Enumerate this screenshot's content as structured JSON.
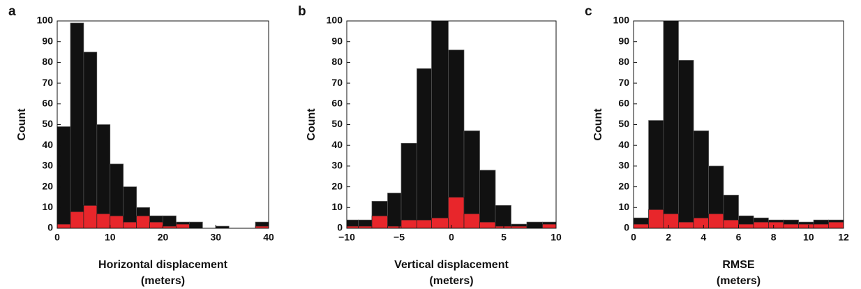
{
  "chart_data": [
    {
      "type": "histogram",
      "panel_label": "a",
      "xlabel": [
        "Horizontal displacement",
        "(meters)"
      ],
      "ylabel": "Count",
      "bins": [
        0,
        2.5,
        5,
        7.5,
        10,
        12.5,
        15,
        17.5,
        20,
        22.5,
        25,
        27.5,
        30,
        32.5,
        35,
        37.5,
        40
      ],
      "series": [
        {
          "color": "#111111",
          "values": [
            49,
            99,
            85,
            50,
            31,
            20,
            10,
            6,
            6,
            3,
            3,
            0,
            1,
            0,
            0,
            3
          ]
        },
        {
          "color": "#e8262b",
          "values": [
            2,
            8,
            11,
            7,
            6,
            3,
            6,
            3,
            1,
            2,
            0,
            0,
            0,
            0,
            0,
            1
          ]
        }
      ],
      "xlim": [
        0,
        40
      ],
      "xticks": [
        0,
        10,
        20,
        30,
        40
      ],
      "ylim": [
        0,
        100
      ],
      "yticks": [
        0,
        10,
        20,
        30,
        40,
        50,
        60,
        70,
        80,
        90,
        100
      ]
    },
    {
      "type": "histogram",
      "panel_label": "b",
      "xlabel": [
        "Vertical displacement",
        "(meters)"
      ],
      "ylabel": "Count",
      "bins": [
        -10,
        -8.9,
        -7.6,
        -6.1,
        -4.8,
        -3.3,
        -1.9,
        -0.3,
        1.2,
        2.7,
        4.2,
        5.7,
        7.2,
        8.7,
        10
      ],
      "series": [
        {
          "color": "#111111",
          "values": [
            4,
            4,
            13,
            17,
            41,
            77,
            100,
            86,
            47,
            28,
            11,
            2,
            3,
            3
          ]
        },
        {
          "color": "#e8262b",
          "values": [
            1,
            1,
            6,
            1,
            4,
            4,
            5,
            15,
            7,
            3,
            1,
            1,
            0,
            2
          ]
        }
      ],
      "xlim": [
        -10,
        10
      ],
      "xticks": [
        {
          "value": -10,
          "label": "−10"
        },
        {
          "value": -5,
          "label": "−5"
        },
        0,
        5,
        10
      ],
      "ylim": [
        0,
        100
      ],
      "yticks": [
        0,
        10,
        20,
        30,
        40,
        50,
        60,
        70,
        80,
        90,
        100
      ]
    },
    {
      "type": "histogram",
      "panel_label": "c",
      "xlabel": [
        "RMSE",
        "(meters)"
      ],
      "ylabel": "Count",
      "bins": [
        0,
        0.86,
        1.71,
        2.57,
        3.43,
        4.29,
        5.14,
        6,
        6.86,
        7.71,
        8.57,
        9.43,
        10.29,
        11.14,
        12
      ],
      "series": [
        {
          "color": "#111111",
          "values": [
            5,
            52,
            100,
            81,
            47,
            30,
            16,
            6,
            5,
            4,
            4,
            3,
            4,
            4
          ]
        },
        {
          "color": "#e8262b",
          "values": [
            2,
            9,
            7,
            3,
            5,
            7,
            4,
            2,
            3,
            3,
            2,
            2,
            2,
            3
          ]
        }
      ],
      "xlim": [
        0,
        12
      ],
      "xticks": [
        0,
        2,
        4,
        6,
        8,
        10,
        12
      ],
      "ylim": [
        0,
        100
      ],
      "yticks": [
        0,
        10,
        20,
        30,
        40,
        50,
        60,
        70,
        80,
        90,
        100
      ]
    }
  ]
}
